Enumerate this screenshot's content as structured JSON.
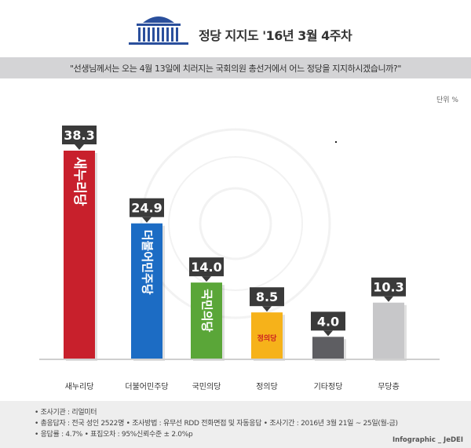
{
  "header": {
    "title": "정당 지지도 '16년 3월 4주차",
    "question": "\"선생님께서는 오는 4월 13일에  치러지는 국회의원 총선거에서 어느 정당을 지지하시겠습니까?\"",
    "unit": "단위 %"
  },
  "chart_data": {
    "type": "bar",
    "categories": [
      "새누리당",
      "더불어민주당",
      "국민의당",
      "정의당",
      "기타정당",
      "무당층"
    ],
    "values": [
      38.3,
      24.9,
      14.0,
      8.5,
      4.0,
      10.3
    ],
    "value_labels": [
      "38.3",
      "24.9",
      "14.0",
      "8.5",
      "4.0",
      "10.3"
    ],
    "bar_texts": [
      "새누리당",
      "더불어민주당",
      "국민의당",
      "정의당",
      "",
      ""
    ],
    "colors": [
      "#c8202c",
      "#1c6cc4",
      "#5aa638",
      "#f6b21a",
      "#5e5e62",
      "#c7c7c9"
    ],
    "ylim": [
      0,
      40
    ],
    "grid": false
  },
  "footer": {
    "line1": "• 조사기관 : 리얼미터",
    "line2": "• 총응답자 : 전국 성인 2522명  • 조사방법 : 유무선 RDD 전화면접 및 자동응답  • 조사기간 : 2016년 3월 21일 ~ 25일(월-금)",
    "line3": "• 응답률 : 4.7%  • 표집오차 : 95%신뢰수준 ± 2.0%p",
    "credit": "Infographic _ JeDEI"
  }
}
